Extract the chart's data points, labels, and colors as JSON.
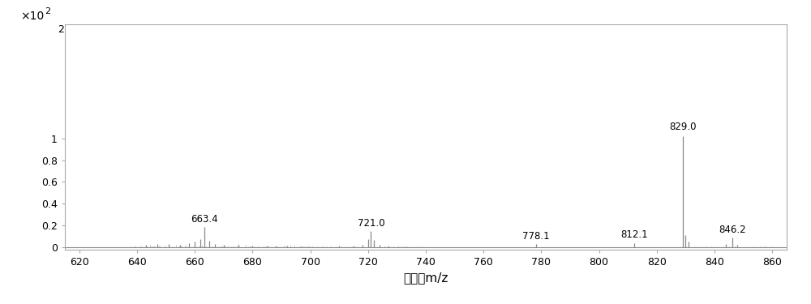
{
  "xlim": [
    615,
    865
  ],
  "ylim": [
    -0.02,
    2.05
  ],
  "yticks": [
    0,
    0.2,
    0.4,
    0.6,
    0.8,
    1.0
  ],
  "ytick_top": 2,
  "xticks": [
    620,
    640,
    660,
    680,
    700,
    720,
    740,
    760,
    780,
    800,
    820,
    840,
    860
  ],
  "xlabel": "荷质比m/z",
  "background_color": "#ffffff",
  "line_color": "#888888",
  "labeled_peaks": [
    {
      "mz": 663.4,
      "intensity": 0.185,
      "label": "663.4"
    },
    {
      "mz": 721.0,
      "intensity": 0.145,
      "label": "721.0"
    },
    {
      "mz": 778.1,
      "intensity": 0.028,
      "label": "778.1"
    },
    {
      "mz": 812.1,
      "intensity": 0.038,
      "label": "812.1"
    },
    {
      "mz": 829.0,
      "intensity": 1.02,
      "label": "829.0"
    },
    {
      "mz": 846.2,
      "intensity": 0.085,
      "label": "846.2"
    }
  ],
  "small_peaks": [
    {
      "mz": 643,
      "intensity": 0.022
    },
    {
      "mz": 647,
      "intensity": 0.03
    },
    {
      "mz": 651,
      "intensity": 0.028
    },
    {
      "mz": 655,
      "intensity": 0.022
    },
    {
      "mz": 658,
      "intensity": 0.038
    },
    {
      "mz": 660,
      "intensity": 0.048
    },
    {
      "mz": 662,
      "intensity": 0.075
    },
    {
      "mz": 663.4,
      "intensity": 0.185
    },
    {
      "mz": 665,
      "intensity": 0.055
    },
    {
      "mz": 667,
      "intensity": 0.032
    },
    {
      "mz": 670,
      "intensity": 0.022
    },
    {
      "mz": 675,
      "intensity": 0.018
    },
    {
      "mz": 680,
      "intensity": 0.014
    },
    {
      "mz": 685,
      "intensity": 0.016
    },
    {
      "mz": 688,
      "intensity": 0.013
    },
    {
      "mz": 692,
      "intensity": 0.01
    },
    {
      "mz": 697,
      "intensity": 0.009
    },
    {
      "mz": 704,
      "intensity": 0.009
    },
    {
      "mz": 710,
      "intensity": 0.011
    },
    {
      "mz": 715,
      "intensity": 0.013
    },
    {
      "mz": 718,
      "intensity": 0.022
    },
    {
      "mz": 720,
      "intensity": 0.075
    },
    {
      "mz": 721.0,
      "intensity": 0.145
    },
    {
      "mz": 722,
      "intensity": 0.065
    },
    {
      "mz": 724,
      "intensity": 0.022
    },
    {
      "mz": 727,
      "intensity": 0.013
    },
    {
      "mz": 733,
      "intensity": 0.009
    },
    {
      "mz": 778.1,
      "intensity": 0.028
    },
    {
      "mz": 812.1,
      "intensity": 0.038
    },
    {
      "mz": 829.0,
      "intensity": 1.02
    },
    {
      "mz": 830,
      "intensity": 0.11
    },
    {
      "mz": 831,
      "intensity": 0.05
    },
    {
      "mz": 844,
      "intensity": 0.025
    },
    {
      "mz": 846.2,
      "intensity": 0.085
    },
    {
      "mz": 848,
      "intensity": 0.018
    }
  ],
  "noise_seed1": 42,
  "noise_seed2": 99,
  "noise_seed3": 77
}
